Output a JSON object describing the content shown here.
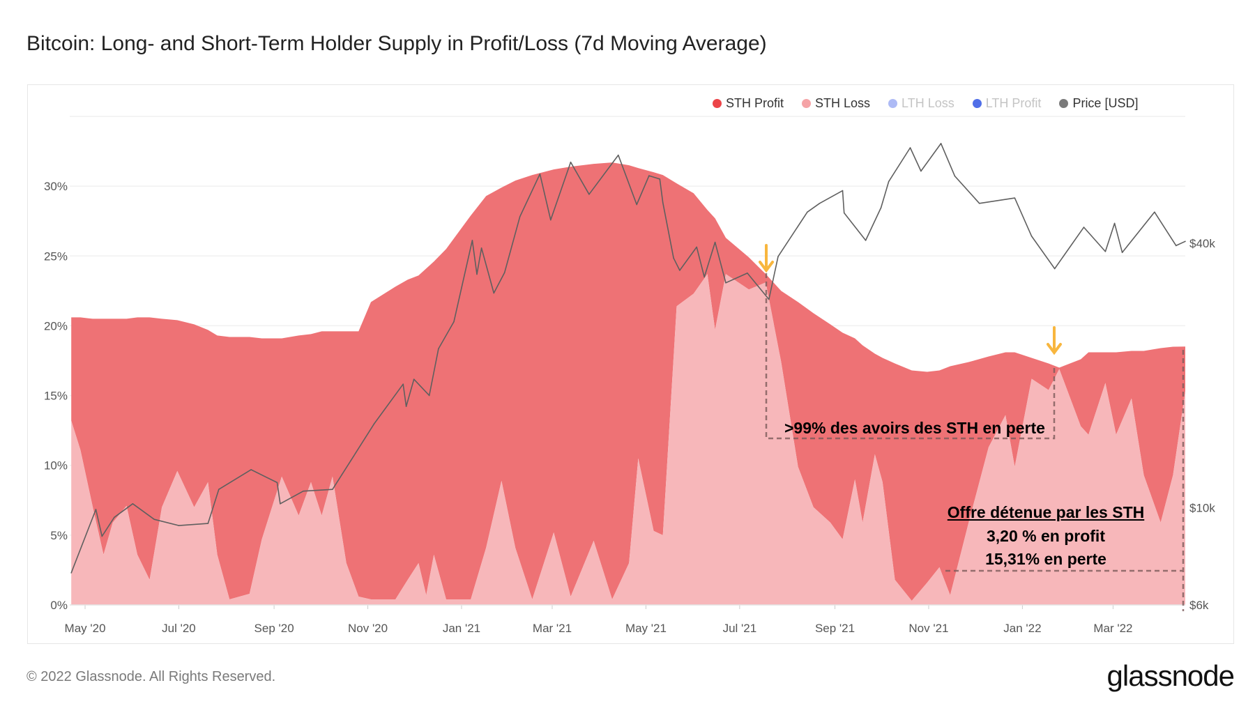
{
  "title": "Bitcoin: Long- and Short-Term Holder Supply in Profit/Loss (7d Moving Average)",
  "footer": "© 2022 Glassnode. All Rights Reserved.",
  "logo": "glassnode",
  "watermark": "glassnode",
  "legend": [
    {
      "label": "STH Profit",
      "color": "#ec4448",
      "active": true
    },
    {
      "label": "STH Loss",
      "color": "#f5a3a6",
      "active": true
    },
    {
      "label": "LTH Loss",
      "color": "#a4b3f4",
      "active": false
    },
    {
      "label": "LTH Profit",
      "color": "#3d5fe6",
      "active": false
    },
    {
      "label": "Price [USD]",
      "color": "#7a7a7a",
      "active": true
    }
  ],
  "annotations": {
    "box1_text": ">99% des avoirs des STH en perte",
    "box2_title": "Offre détenue par les STH",
    "box2_line1": "3,20 % en profit",
    "box2_line2": "15,31% en perte",
    "arrow_color": "#f8b63e"
  },
  "chart_data": {
    "type": "area",
    "stacked": true,
    "title": "Bitcoin: Long- and Short-Term Holder Supply in Profit/Loss (7d Moving Average)",
    "xlim": [
      "2020-04-21",
      "2022-04-17"
    ],
    "ylim": [
      0,
      35
    ],
    "y2lim": [
      6000,
      77800
    ],
    "y2_scale": "log",
    "grid": true,
    "legend_position": "top-right",
    "x_ticks": [
      {
        "date": "2020-05-01",
        "label": "May '20"
      },
      {
        "date": "2020-07-01",
        "label": "Jul '20"
      },
      {
        "date": "2020-09-01",
        "label": "Sep '20"
      },
      {
        "date": "2020-11-01",
        "label": "Nov '20"
      },
      {
        "date": "2021-01-01",
        "label": "Jan '21"
      },
      {
        "date": "2021-03-01",
        "label": "Mar '21"
      },
      {
        "date": "2021-05-01",
        "label": "May '21"
      },
      {
        "date": "2021-07-01",
        "label": "Jul '21"
      },
      {
        "date": "2021-09-01",
        "label": "Sep '21"
      },
      {
        "date": "2021-11-01",
        "label": "Nov '21"
      },
      {
        "date": "2022-01-01",
        "label": "Jan '22"
      },
      {
        "date": "2022-03-01",
        "label": "Mar '22"
      }
    ],
    "y_ticks": [
      {
        "value": 0,
        "label": "0%"
      },
      {
        "value": 5,
        "label": "5%"
      },
      {
        "value": 10,
        "label": "10%"
      },
      {
        "value": 15,
        "label": "15%"
      },
      {
        "value": 20,
        "label": "20%"
      },
      {
        "value": 25,
        "label": "25%"
      },
      {
        "value": 30,
        "label": "30%"
      }
    ],
    "y2_ticks": [
      {
        "value": 6000,
        "label": "$6k"
      },
      {
        "value": 10000,
        "label": "$10k"
      },
      {
        "value": 40000,
        "label": "$40k"
      }
    ],
    "dates": [
      "2020-04-22",
      "2020-04-28",
      "2020-05-06",
      "2020-05-13",
      "2020-05-19",
      "2020-05-28",
      "2020-06-04",
      "2020-06-12",
      "2020-06-20",
      "2020-06-30",
      "2020-07-11",
      "2020-07-20",
      "2020-07-26",
      "2020-08-03",
      "2020-08-16",
      "2020-08-24",
      "2020-09-06",
      "2020-09-17",
      "2020-09-25",
      "2020-10-02",
      "2020-10-09",
      "2020-10-18",
      "2020-10-26",
      "2020-11-03",
      "2020-11-19",
      "2020-11-27",
      "2020-12-04",
      "2020-12-09",
      "2020-12-14",
      "2020-12-22",
      "2021-01-07",
      "2021-01-17",
      "2021-01-27",
      "2021-02-05",
      "2021-02-16",
      "2021-03-02",
      "2021-03-13",
      "2021-03-28",
      "2021-04-09",
      "2021-04-20",
      "2021-04-26",
      "2021-05-06",
      "2021-05-12",
      "2021-05-21",
      "2021-06-01",
      "2021-06-10",
      "2021-06-15",
      "2021-06-22",
      "2021-07-07",
      "2021-07-18",
      "2021-07-28",
      "2021-08-08",
      "2021-08-18",
      "2021-08-29",
      "2021-09-06",
      "2021-09-14",
      "2021-09-19",
      "2021-09-27",
      "2021-10-02",
      "2021-10-10",
      "2021-10-21",
      "2021-10-31",
      "2021-11-08",
      "2021-11-15",
      "2021-11-27",
      "2021-12-10",
      "2021-12-21",
      "2021-12-27",
      "2022-01-07",
      "2022-01-18",
      "2022-01-25",
      "2022-02-08",
      "2022-02-13",
      "2022-02-24",
      "2022-03-03",
      "2022-03-13",
      "2022-03-21",
      "2022-04-01",
      "2022-04-09",
      "2022-04-17"
    ],
    "series": [
      {
        "name": "STH Loss",
        "color": "#f7b7ba",
        "values": [
          13.2,
          11.1,
          7.0,
          3.6,
          5.9,
          7.1,
          3.6,
          1.8,
          7.0,
          9.6,
          7.0,
          8.8,
          3.6,
          0.4,
          0.8,
          4.7,
          9.2,
          6.4,
          8.8,
          6.4,
          9.2,
          3.0,
          0.6,
          0.4,
          0.4,
          1.8,
          3.0,
          0.7,
          3.6,
          0.4,
          0.4,
          4.1,
          8.9,
          4.1,
          0.4,
          5.2,
          0.6,
          4.6,
          0.4,
          3.0,
          10.5,
          5.3,
          5.0,
          21.4,
          22.3,
          23.7,
          19.7,
          23.7,
          22.6,
          23.1,
          17.4,
          9.9,
          7.0,
          5.9,
          4.7,
          9.0,
          5.9,
          10.8,
          8.8,
          1.8,
          0.3,
          1.6,
          2.7,
          0.7,
          5.9,
          11.3,
          13.6,
          9.9,
          16.2,
          15.4,
          16.9,
          12.8,
          12.2,
          15.9,
          12.2,
          14.8,
          9.3,
          5.9,
          9.3,
          15.31
        ]
      },
      {
        "name": "STH Profit",
        "color": "#ee7275",
        "values": [
          7.4,
          9.5,
          13.5,
          16.9,
          14.6,
          13.4,
          17.0,
          18.8,
          13.5,
          10.8,
          13.1,
          10.9,
          15.7,
          18.8,
          18.4,
          14.4,
          9.9,
          12.9,
          10.6,
          13.2,
          10.4,
          16.6,
          19.0,
          21.3,
          22.4,
          21.5,
          20.6,
          23.4,
          21.0,
          25.1,
          27.5,
          25.2,
          21.0,
          26.3,
          30.4,
          26.0,
          30.8,
          27.0,
          31.3,
          28.5,
          20.8,
          25.7,
          25.8,
          8.8,
          7.2,
          4.6,
          8.0,
          2.6,
          2.3,
          0.6,
          5.1,
          11.8,
          13.9,
          14.2,
          14.8,
          10.1,
          12.7,
          7.2,
          8.9,
          15.5,
          16.5,
          15.1,
          14.1,
          16.4,
          11.5,
          6.5,
          4.5,
          8.2,
          1.5,
          1.9,
          0.1,
          4.8,
          5.9,
          2.2,
          5.9,
          3.4,
          8.9,
          12.5,
          9.2,
          3.2
        ]
      }
    ],
    "price": {
      "name": "Price [USD]",
      "color": "#5f5f5f",
      "dates": [
        "2020-04-22",
        "2020-05-08",
        "2020-05-12",
        "2020-05-20",
        "2020-06-01",
        "2020-06-15",
        "2020-07-01",
        "2020-07-20",
        "2020-07-27",
        "2020-08-17",
        "2020-09-03",
        "2020-09-05",
        "2020-09-20",
        "2020-10-09",
        "2020-10-21",
        "2020-11-05",
        "2020-11-24",
        "2020-11-26",
        "2020-12-01",
        "2020-12-11",
        "2020-12-17",
        "2020-12-27",
        "2021-01-08",
        "2021-01-11",
        "2021-01-14",
        "2021-01-22",
        "2021-01-29",
        "2021-02-08",
        "2021-02-21",
        "2021-02-28",
        "2021-03-13",
        "2021-03-25",
        "2021-04-13",
        "2021-04-25",
        "2021-05-03",
        "2021-05-10",
        "2021-05-12",
        "2021-05-19",
        "2021-05-23",
        "2021-06-03",
        "2021-06-08",
        "2021-06-15",
        "2021-06-22",
        "2021-07-06",
        "2021-07-20",
        "2021-07-26",
        "2021-08-14",
        "2021-08-22",
        "2021-09-06",
        "2021-09-07",
        "2021-09-21",
        "2021-10-01",
        "2021-10-06",
        "2021-10-20",
        "2021-10-27",
        "2021-11-09",
        "2021-11-18",
        "2021-12-04",
        "2021-12-27",
        "2022-01-07",
        "2022-01-22",
        "2022-02-10",
        "2022-02-24",
        "2022-03-02",
        "2022-03-07",
        "2022-03-28",
        "2022-04-11",
        "2022-04-17"
      ],
      "values": [
        7100,
        9900,
        8600,
        9500,
        10200,
        9400,
        9100,
        9200,
        11000,
        12200,
        11400,
        10200,
        10900,
        11000,
        12800,
        15500,
        19100,
        17000,
        19600,
        18000,
        23000,
        26500,
        40600,
        34000,
        39000,
        30800,
        34300,
        46000,
        57500,
        45200,
        61200,
        51700,
        63500,
        49000,
        57000,
        56000,
        49500,
        37000,
        34700,
        39200,
        33500,
        40200,
        32500,
        34200,
        29800,
        37300,
        47100,
        49300,
        52700,
        46900,
        40600,
        48200,
        55300,
        66000,
        58400,
        67500,
        56900,
        49300,
        50700,
        41500,
        35000,
        43500,
        38300,
        44400,
        38100,
        47100,
        39500,
        40400
      ]
    }
  }
}
